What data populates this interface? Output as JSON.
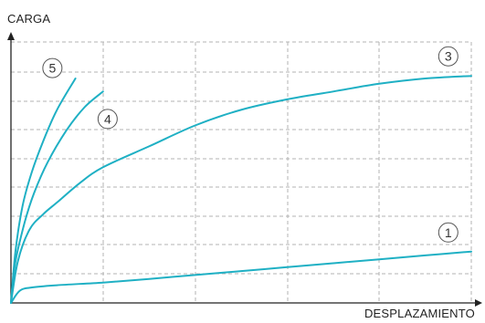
{
  "chart_data": {
    "type": "line",
    "title": "",
    "xlabel": "DESPLAZAMIENTO",
    "ylabel": "CARGA",
    "xlim": [
      0,
      10
    ],
    "ylim": [
      0,
      10
    ],
    "grid": true,
    "tick_labels_shown": false,
    "series": [
      {
        "name": "1",
        "x": [
          0,
          0.2,
          0.5,
          1,
          2,
          3,
          4,
          5,
          6,
          7,
          8,
          9,
          10
        ],
        "y": [
          0,
          0.48,
          0.6,
          0.68,
          0.78,
          0.92,
          1.07,
          1.22,
          1.37,
          1.52,
          1.67,
          1.82,
          1.97
        ]
      },
      {
        "name": "3",
        "x": [
          0,
          0.15,
          0.4,
          0.7,
          1.0,
          1.5,
          2.0,
          3.0,
          4.0,
          5.0,
          6.0,
          7.0,
          8.0,
          9.0,
          10.0
        ],
        "y": [
          0,
          1.6,
          2.8,
          3.4,
          3.85,
          4.6,
          5.2,
          6.0,
          6.8,
          7.4,
          7.8,
          8.1,
          8.4,
          8.6,
          8.7
        ]
      },
      {
        "name": "4",
        "x": [
          0,
          0.1,
          0.3,
          0.5,
          0.8,
          1.2,
          1.6,
          2.0
        ],
        "y": [
          0,
          1.6,
          3.1,
          4.2,
          5.4,
          6.6,
          7.5,
          8.1
        ]
      },
      {
        "name": "5",
        "x": [
          0,
          0.1,
          0.25,
          0.45,
          0.7,
          1.0,
          1.4
        ],
        "y": [
          0,
          2.0,
          3.7,
          5.0,
          6.2,
          7.4,
          8.6
        ]
      }
    ],
    "series_label_positions": [
      {
        "name": "1",
        "x": 9.5,
        "y": 2.7
      },
      {
        "name": "3",
        "x": 9.5,
        "y": 9.45
      },
      {
        "name": "4",
        "x": 2.1,
        "y": 7.05
      },
      {
        "name": "5",
        "x": 0.9,
        "y": 9.0
      }
    ],
    "line_color": "#1fb0c4",
    "grid_color": "#b3b3b3",
    "axis_color": "#222222",
    "label_circle_color": "#555555"
  }
}
